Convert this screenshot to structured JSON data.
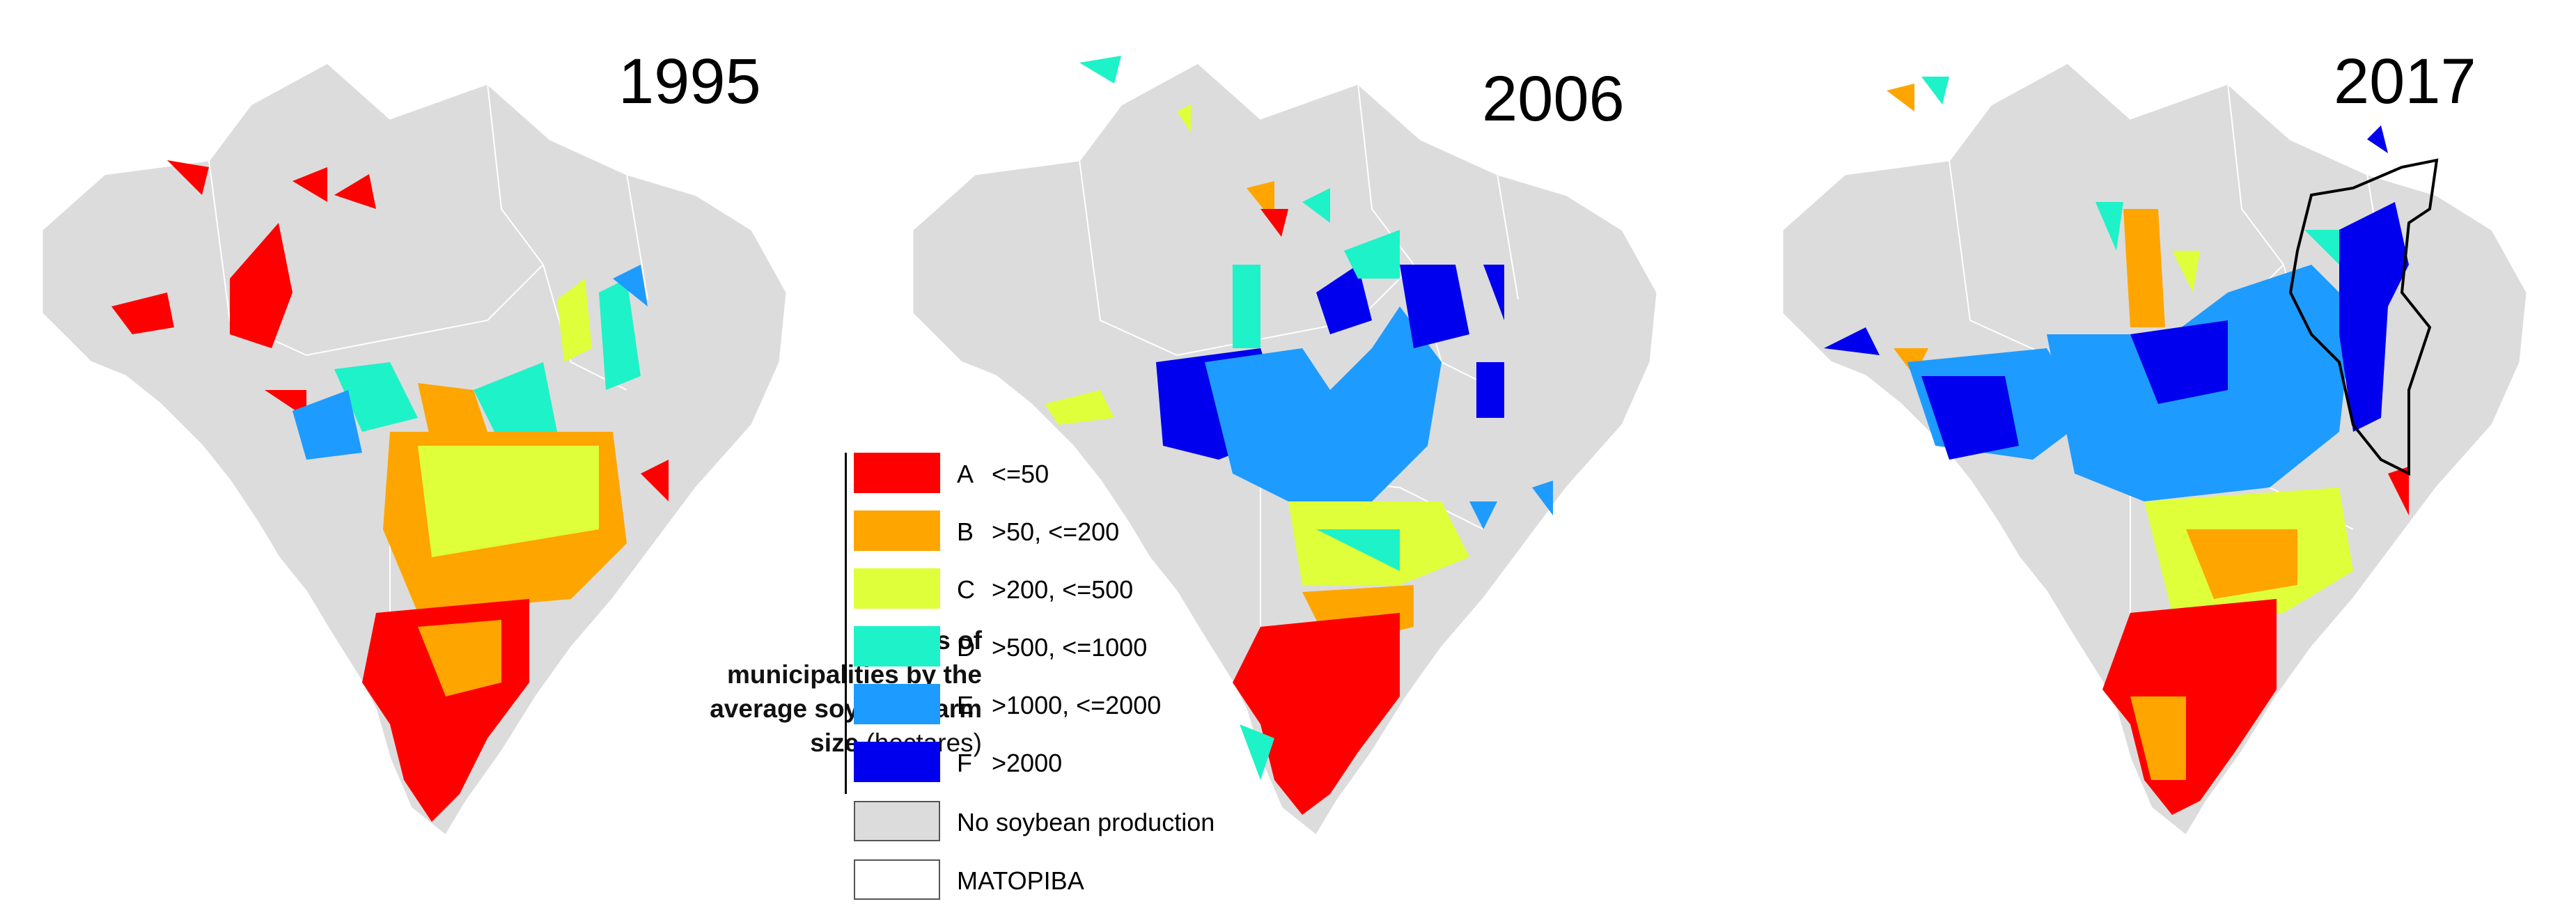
{
  "maps": [
    {
      "year": "1995"
    },
    {
      "year": "2006"
    },
    {
      "year": "2017"
    }
  ],
  "legend": {
    "caption_bold": "Classes of municipalities by the average soybean farm size",
    "caption_unit": "(hectares)",
    "classes": [
      {
        "code": "A",
        "range": "<=50",
        "color": "#ff0000"
      },
      {
        "code": "B",
        "range": ">50, <=200",
        "color": "#ffa500"
      },
      {
        "code": "C",
        "range": ">200, <=500",
        "color": "#dfff3a"
      },
      {
        "code": "D",
        "range": ">500, <=1000",
        "color": "#1ef2c8"
      },
      {
        "code": "E",
        "range": ">1000, <=2000",
        "color": "#1e9bff"
      },
      {
        "code": "F",
        "range": ">2000",
        "color": "#0000ee"
      }
    ],
    "no_production": {
      "label": "No soybean production",
      "color": "#dcdcdc"
    },
    "matopiba": {
      "label": "MATOPIBA",
      "color": "#ffffff"
    }
  },
  "colors": {
    "land": "#dcdcdc",
    "border": "#ffffff",
    "matopiba_outline": "#000000"
  }
}
